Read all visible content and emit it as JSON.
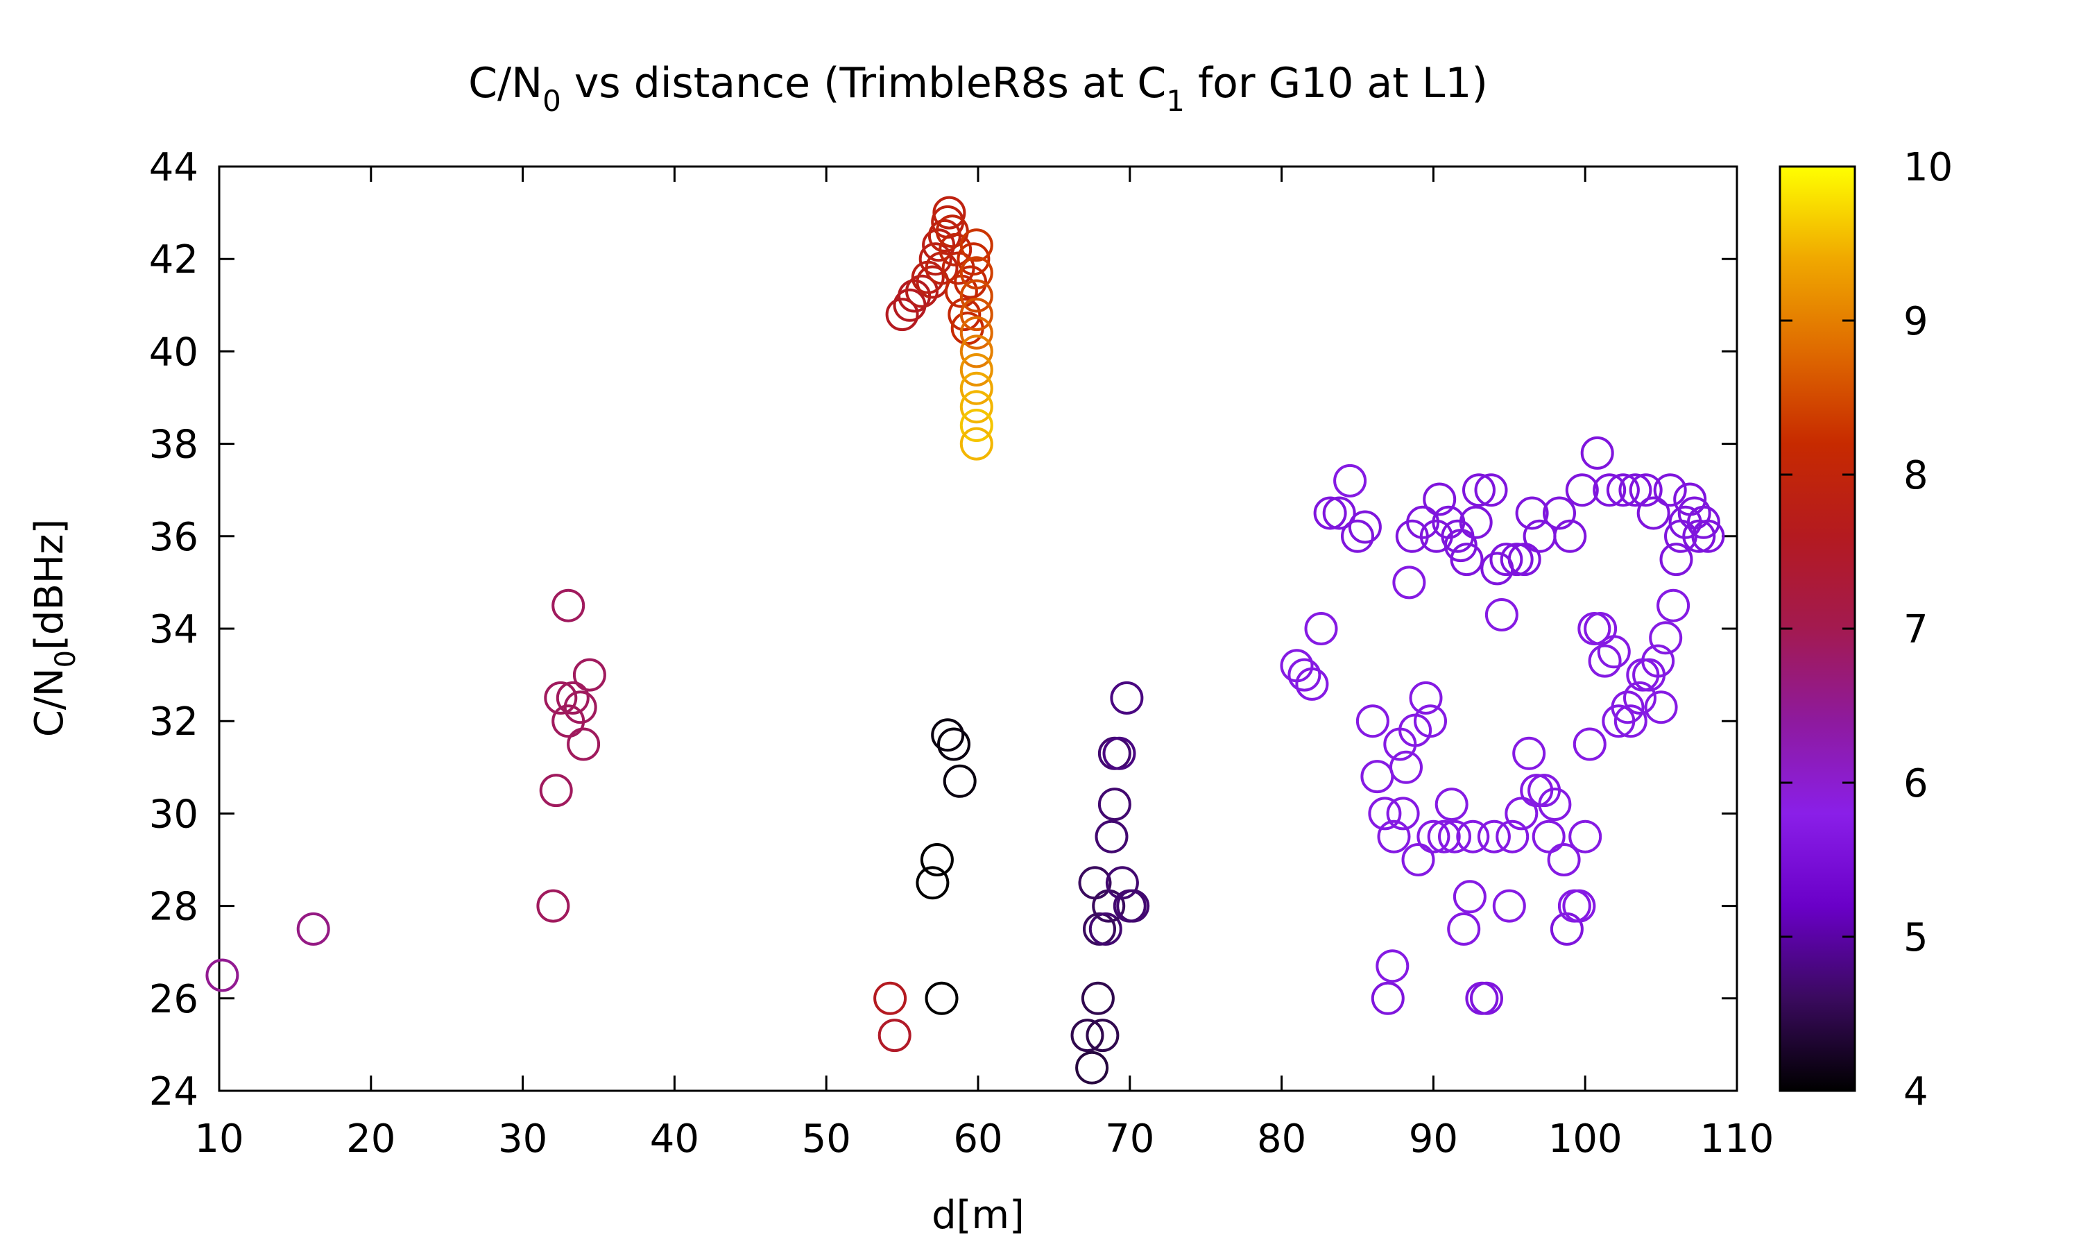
{
  "chart_data": {
    "type": "scatter",
    "title": "C/N",
    "title_sub_0": "0",
    "title_mid": " vs distance (TrimbleR8s at C",
    "title_sub_1": "1",
    "title_end": " for G10 at L1)",
    "xlabel": "d[m]",
    "ylabel": "C/N",
    "ylabel_sub": "0",
    "ylabel_end": "[dBHz]",
    "xlim": [
      10,
      110
    ],
    "ylim": [
      24,
      44
    ],
    "x_ticks": [
      "10",
      "20",
      "30",
      "40",
      "50",
      "60",
      "70",
      "80",
      "90",
      "100",
      "110"
    ],
    "y_ticks": [
      "24",
      "26",
      "28",
      "30",
      "32",
      "34",
      "36",
      "38",
      "40",
      "42",
      "44"
    ],
    "colorbar": {
      "range": [
        4,
        10
      ],
      "ticks": [
        "4",
        "5",
        "6",
        "7",
        "8",
        "9",
        "10"
      ],
      "palette": [
        "#000000",
        "#3a0a5e",
        "#6a00c8",
        "#8a1fe8",
        "#8e1a9e",
        "#a31a50",
        "#b41a20",
        "#c72a00",
        "#df6a00",
        "#f0a800",
        "#ffff00"
      ]
    },
    "marker": "open-circle",
    "grid": false,
    "points": [
      [
        10.2,
        26.5,
        6.5
      ],
      [
        16.2,
        27.5,
        6.6
      ],
      [
        32.0,
        28.0,
        6.9
      ],
      [
        32.2,
        30.5,
        6.9
      ],
      [
        32.5,
        32.5,
        6.9
      ],
      [
        33.0,
        32.0,
        6.9
      ],
      [
        33.0,
        34.5,
        6.9
      ],
      [
        33.3,
        32.5,
        6.9
      ],
      [
        33.8,
        32.3,
        6.9
      ],
      [
        34.0,
        31.5,
        6.9
      ],
      [
        34.4,
        33.0,
        6.9
      ],
      [
        54.2,
        26.0,
        7.6
      ],
      [
        54.5,
        25.2,
        7.5
      ],
      [
        55.0,
        40.8,
        7.6
      ],
      [
        55.5,
        41.0,
        7.6
      ],
      [
        55.8,
        41.2,
        7.6
      ],
      [
        56.3,
        41.3,
        7.7
      ],
      [
        56.7,
        41.6,
        7.8
      ],
      [
        57.0,
        41.5,
        7.8
      ],
      [
        57.2,
        42.0,
        7.8
      ],
      [
        57.4,
        42.3,
        7.8
      ],
      [
        57.6,
        41.8,
        7.9
      ],
      [
        57.8,
        42.5,
        7.9
      ],
      [
        58.0,
        42.8,
        7.9
      ],
      [
        58.1,
        43.0,
        7.9
      ],
      [
        58.3,
        42.6,
        8.0
      ],
      [
        58.5,
        42.2,
        8.0
      ],
      [
        58.7,
        41.8,
        8.0
      ],
      [
        58.9,
        41.3,
        8.1
      ],
      [
        59.1,
        40.8,
        8.1
      ],
      [
        59.3,
        40.5,
        8.2
      ],
      [
        59.5,
        41.5,
        8.1
      ],
      [
        59.7,
        42.0,
        8.2
      ],
      [
        59.9,
        42.3,
        8.3
      ],
      [
        59.9,
        41.7,
        8.4
      ],
      [
        59.9,
        41.2,
        8.5
      ],
      [
        59.9,
        40.8,
        8.6
      ],
      [
        59.9,
        40.4,
        8.8
      ],
      [
        59.9,
        40.0,
        9.0
      ],
      [
        59.9,
        39.6,
        9.2
      ],
      [
        59.9,
        39.2,
        9.4
      ],
      [
        59.9,
        38.8,
        9.5
      ],
      [
        59.9,
        38.4,
        9.6
      ],
      [
        59.9,
        38.0,
        9.5
      ],
      [
        57.0,
        28.5,
        4.0
      ],
      [
        57.3,
        29.0,
        4.0
      ],
      [
        57.6,
        26.0,
        4.0
      ],
      [
        58.0,
        31.7,
        4.1
      ],
      [
        58.4,
        31.5,
        4.1
      ],
      [
        58.8,
        30.7,
        4.1
      ],
      [
        67.2,
        25.2,
        4.5
      ],
      [
        67.5,
        24.5,
        4.4
      ],
      [
        67.7,
        28.5,
        4.6
      ],
      [
        67.9,
        26.0,
        4.5
      ],
      [
        68.0,
        27.5,
        4.6
      ],
      [
        68.2,
        25.2,
        4.5
      ],
      [
        68.4,
        27.5,
        4.7
      ],
      [
        68.6,
        28.0,
        4.6
      ],
      [
        68.8,
        29.5,
        4.7
      ],
      [
        69.0,
        30.2,
        4.7
      ],
      [
        69.0,
        31.3,
        4.7
      ],
      [
        69.3,
        31.3,
        4.8
      ],
      [
        69.5,
        28.5,
        4.7
      ],
      [
        69.8,
        32.5,
        4.8
      ],
      [
        70.0,
        28.0,
        4.7
      ],
      [
        70.2,
        28.0,
        4.7
      ],
      [
        81.0,
        33.2,
        5.7
      ],
      [
        81.5,
        33.0,
        5.7
      ],
      [
        82.0,
        32.8,
        5.7
      ],
      [
        82.6,
        34.0,
        5.7
      ],
      [
        83.2,
        36.5,
        5.6
      ],
      [
        83.8,
        36.5,
        5.6
      ],
      [
        84.5,
        37.2,
        5.7
      ],
      [
        85.0,
        36.0,
        5.6
      ],
      [
        85.5,
        36.2,
        5.6
      ],
      [
        86.0,
        32.0,
        5.7
      ],
      [
        86.3,
        30.8,
        5.7
      ],
      [
        86.8,
        30.0,
        5.7
      ],
      [
        87.0,
        26.0,
        5.6
      ],
      [
        87.3,
        26.7,
        5.7
      ],
      [
        87.4,
        29.5,
        5.7
      ],
      [
        87.8,
        31.5,
        5.7
      ],
      [
        88.0,
        30.0,
        5.7
      ],
      [
        88.2,
        31.0,
        5.7
      ],
      [
        88.4,
        35.0,
        5.7
      ],
      [
        88.6,
        36.0,
        5.6
      ],
      [
        88.8,
        31.8,
        5.7
      ],
      [
        89.0,
        29.0,
        5.7
      ],
      [
        89.3,
        36.3,
        5.6
      ],
      [
        89.5,
        32.5,
        5.7
      ],
      [
        89.8,
        32.0,
        5.7
      ],
      [
        90.0,
        29.5,
        5.7
      ],
      [
        90.2,
        36.0,
        5.6
      ],
      [
        90.4,
        36.8,
        5.6
      ],
      [
        90.7,
        29.5,
        5.7
      ],
      [
        91.0,
        36.3,
        5.6
      ],
      [
        91.2,
        30.2,
        5.7
      ],
      [
        91.4,
        29.5,
        5.7
      ],
      [
        91.6,
        36.0,
        5.6
      ],
      [
        91.8,
        35.8,
        5.6
      ],
      [
        92.0,
        27.5,
        5.7
      ],
      [
        92.2,
        35.5,
        5.6
      ],
      [
        92.4,
        28.2,
        5.7
      ],
      [
        92.6,
        29.5,
        5.7
      ],
      [
        92.8,
        36.3,
        5.6
      ],
      [
        93.0,
        37.0,
        5.6
      ],
      [
        93.2,
        26.0,
        5.6
      ],
      [
        93.5,
        26.0,
        5.6
      ],
      [
        93.8,
        37.0,
        5.6
      ],
      [
        94.0,
        29.5,
        5.7
      ],
      [
        94.2,
        35.3,
        5.6
      ],
      [
        94.5,
        34.3,
        5.7
      ],
      [
        94.8,
        35.5,
        5.6
      ],
      [
        95.0,
        28.0,
        5.7
      ],
      [
        95.2,
        29.5,
        5.7
      ],
      [
        95.5,
        35.5,
        5.6
      ],
      [
        95.8,
        30.0,
        5.7
      ],
      [
        96.0,
        35.5,
        5.6
      ],
      [
        96.3,
        31.3,
        5.7
      ],
      [
        96.5,
        36.5,
        5.6
      ],
      [
        96.8,
        30.5,
        5.7
      ],
      [
        97.0,
        36.0,
        5.6
      ],
      [
        97.3,
        30.5,
        5.7
      ],
      [
        97.6,
        29.5,
        5.7
      ],
      [
        98.0,
        30.2,
        5.7
      ],
      [
        98.3,
        36.5,
        5.6
      ],
      [
        98.6,
        29.0,
        5.7
      ],
      [
        98.8,
        27.5,
        5.6
      ],
      [
        99.0,
        36.0,
        5.6
      ],
      [
        99.3,
        28.0,
        5.7
      ],
      [
        99.6,
        28.0,
        5.7
      ],
      [
        99.8,
        37.0,
        5.6
      ],
      [
        100.0,
        29.5,
        5.7
      ],
      [
        100.3,
        31.5,
        5.7
      ],
      [
        100.6,
        34.0,
        5.7
      ],
      [
        100.8,
        37.8,
        5.6
      ],
      [
        101.0,
        34.0,
        5.7
      ],
      [
        101.3,
        33.3,
        5.7
      ],
      [
        101.6,
        37.0,
        5.6
      ],
      [
        101.9,
        33.5,
        5.7
      ],
      [
        102.2,
        32.0,
        5.7
      ],
      [
        102.5,
        37.0,
        5.6
      ],
      [
        102.8,
        32.3,
        5.7
      ],
      [
        103.0,
        32.0,
        5.7
      ],
      [
        103.3,
        37.0,
        5.6
      ],
      [
        103.6,
        32.5,
        5.7
      ],
      [
        103.8,
        33.0,
        5.7
      ],
      [
        104.0,
        37.0,
        5.6
      ],
      [
        104.2,
        33.0,
        5.7
      ],
      [
        104.5,
        36.5,
        5.6
      ],
      [
        104.8,
        33.3,
        5.7
      ],
      [
        105.0,
        32.3,
        5.7
      ],
      [
        105.3,
        33.8,
        5.7
      ],
      [
        105.6,
        37.0,
        5.6
      ],
      [
        105.8,
        34.5,
        5.7
      ],
      [
        106.0,
        35.5,
        5.6
      ],
      [
        106.3,
        36.0,
        5.6
      ],
      [
        106.6,
        36.3,
        5.6
      ],
      [
        106.9,
        36.8,
        5.6
      ],
      [
        107.2,
        36.5,
        5.6
      ],
      [
        107.5,
        36.0,
        5.6
      ],
      [
        107.8,
        36.3,
        5.6
      ],
      [
        108.1,
        36.0,
        5.6
      ]
    ]
  }
}
